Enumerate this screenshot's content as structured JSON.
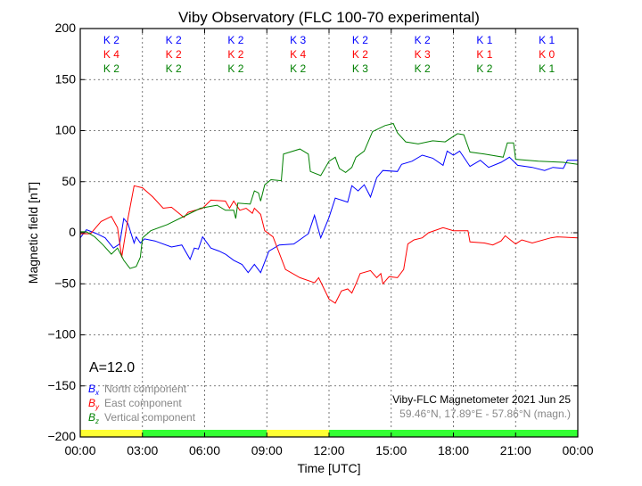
{
  "chart_data": {
    "type": "line",
    "title": "Viby Observatory (FLC 100-70 experimental)",
    "xlabel": "Time [UTC]",
    "ylabel": "Magnetic field [nT]",
    "xlim": [
      0,
      24
    ],
    "ylim": [
      -200,
      200
    ],
    "grid": true,
    "x_ticks": [
      0,
      3,
      6,
      9,
      12,
      15,
      18,
      21,
      24
    ],
    "x_tick_labels": [
      "00:00",
      "03:00",
      "06:00",
      "09:00",
      "12:00",
      "15:00",
      "18:00",
      "21:00",
      "00:00"
    ],
    "y_ticks": [
      200,
      150,
      100,
      50,
      0,
      -50,
      -100,
      -150,
      -200
    ],
    "y_tick_labels": [
      "200",
      "150",
      "100",
      "50",
      "0",
      "−50",
      "−100",
      "−150",
      "−200"
    ],
    "series": [
      {
        "name": "North component",
        "symbol": "B",
        "sub": "x",
        "color": "#0000ff",
        "points": [
          [
            0,
            -5
          ],
          [
            0.3,
            3
          ],
          [
            0.8,
            -1
          ],
          [
            1.2,
            -5
          ],
          [
            1.6,
            -15
          ],
          [
            1.9,
            -11
          ],
          [
            2.1,
            14
          ],
          [
            2.3,
            9
          ],
          [
            2.6,
            -10
          ],
          [
            2.7,
            -4
          ],
          [
            2.9,
            -10
          ],
          [
            3.1,
            -6
          ],
          [
            3.6,
            -8
          ],
          [
            4.4,
            -14
          ],
          [
            4.9,
            -12
          ],
          [
            5.3,
            -26
          ],
          [
            5.5,
            -15
          ],
          [
            5.7,
            -16
          ],
          [
            5.9,
            -4
          ],
          [
            6.3,
            -15
          ],
          [
            6.7,
            -18
          ],
          [
            7,
            -21
          ],
          [
            7.4,
            -27
          ],
          [
            7.8,
            -31
          ],
          [
            8.1,
            -39
          ],
          [
            8.4,
            -31
          ],
          [
            8.7,
            -39
          ],
          [
            9.1,
            -18
          ],
          [
            9.6,
            -12
          ],
          [
            10.3,
            -11
          ],
          [
            11,
            -1
          ],
          [
            11.3,
            17
          ],
          [
            11.6,
            -5
          ],
          [
            12,
            15
          ],
          [
            12.3,
            34
          ],
          [
            12.6,
            32
          ],
          [
            12.9,
            30
          ],
          [
            13.1,
            46
          ],
          [
            13.4,
            41
          ],
          [
            13.7,
            47
          ],
          [
            14,
            35
          ],
          [
            14.3,
            54
          ],
          [
            14.6,
            61
          ],
          [
            15.3,
            60
          ],
          [
            15.5,
            67
          ],
          [
            16,
            70
          ],
          [
            16.5,
            76
          ],
          [
            17,
            73
          ],
          [
            17.5,
            66
          ],
          [
            17.7,
            80
          ],
          [
            18,
            76
          ],
          [
            18.3,
            80
          ],
          [
            18.8,
            65
          ],
          [
            19.3,
            71
          ],
          [
            19.7,
            64
          ],
          [
            20.3,
            69
          ],
          [
            20.7,
            74
          ],
          [
            21.1,
            66
          ],
          [
            21.8,
            64
          ],
          [
            22.4,
            61
          ],
          [
            22.8,
            64
          ],
          [
            23.3,
            63
          ],
          [
            23.5,
            71
          ],
          [
            24,
            71
          ]
        ]
      },
      {
        "name": "East component",
        "symbol": "B",
        "sub": "y",
        "color": "#ff0000",
        "points": [
          [
            0,
            -1
          ],
          [
            0.5,
            -1
          ],
          [
            1,
            11
          ],
          [
            1.5,
            16
          ],
          [
            1.8,
            5
          ],
          [
            2,
            -24
          ],
          [
            2.3,
            14
          ],
          [
            2.6,
            46
          ],
          [
            3,
            44
          ],
          [
            3.5,
            35
          ],
          [
            4,
            24
          ],
          [
            4.4,
            25
          ],
          [
            5,
            15
          ],
          [
            5.2,
            20
          ],
          [
            5.9,
            24
          ],
          [
            6.3,
            32
          ],
          [
            7,
            31
          ],
          [
            7.2,
            24
          ],
          [
            7.4,
            31
          ],
          [
            7.7,
            22
          ],
          [
            8,
            24
          ],
          [
            8.3,
            19
          ],
          [
            8.4,
            24
          ],
          [
            8.7,
            18
          ],
          [
            8.9,
            2
          ],
          [
            9.3,
            -4
          ],
          [
            9.9,
            -36
          ],
          [
            10.6,
            -44
          ],
          [
            11.3,
            -49
          ],
          [
            11.5,
            -44
          ],
          [
            12,
            -65
          ],
          [
            12.3,
            -69
          ],
          [
            12.6,
            -57
          ],
          [
            12.9,
            -55
          ],
          [
            13.1,
            -59
          ],
          [
            13.3,
            -50
          ],
          [
            13.5,
            -40
          ],
          [
            14,
            -37
          ],
          [
            14.3,
            -44
          ],
          [
            14.5,
            -40
          ],
          [
            14.6,
            -50
          ],
          [
            14.9,
            -43
          ],
          [
            15.3,
            -44
          ],
          [
            15.6,
            -36
          ],
          [
            15.8,
            -11
          ],
          [
            16.1,
            -7
          ],
          [
            16.5,
            -5
          ],
          [
            16.8,
            0
          ],
          [
            17.5,
            5
          ],
          [
            18,
            2
          ],
          [
            18.7,
            2
          ],
          [
            18.8,
            -9
          ],
          [
            19.5,
            -10
          ],
          [
            19.9,
            -12
          ],
          [
            20.3,
            -8
          ],
          [
            20.5,
            -3
          ],
          [
            21,
            -11
          ],
          [
            21.3,
            -7
          ],
          [
            21.8,
            -10
          ],
          [
            22.7,
            -5
          ],
          [
            23,
            -4
          ],
          [
            24,
            -5
          ]
        ]
      },
      {
        "name": "Vertical component",
        "symbol": "B",
        "sub": "z",
        "color": "#008000",
        "points": [
          [
            0,
            1
          ],
          [
            0.3,
            1
          ],
          [
            0.7,
            -4
          ],
          [
            1.1,
            -12
          ],
          [
            1.5,
            -21
          ],
          [
            1.8,
            -15
          ],
          [
            2.1,
            -27
          ],
          [
            2.4,
            -35
          ],
          [
            2.7,
            -33
          ],
          [
            2.9,
            -24
          ],
          [
            3,
            -5
          ],
          [
            3.4,
            2
          ],
          [
            4.2,
            8
          ],
          [
            5.1,
            17
          ],
          [
            5.8,
            24
          ],
          [
            6.6,
            27
          ],
          [
            7,
            22
          ],
          [
            7.4,
            22
          ],
          [
            7.5,
            14
          ],
          [
            7.6,
            29
          ],
          [
            8.2,
            28
          ],
          [
            8.4,
            41
          ],
          [
            8.6,
            39
          ],
          [
            8.7,
            31
          ],
          [
            8.9,
            47
          ],
          [
            9.2,
            52
          ],
          [
            9.7,
            51
          ],
          [
            9.8,
            77
          ],
          [
            10.6,
            82
          ],
          [
            11,
            77
          ],
          [
            11.1,
            60
          ],
          [
            11.6,
            56
          ],
          [
            12,
            70
          ],
          [
            12.3,
            74
          ],
          [
            12.5,
            63
          ],
          [
            12.8,
            59
          ],
          [
            13.1,
            64
          ],
          [
            13.3,
            74
          ],
          [
            13.7,
            80
          ],
          [
            14.1,
            99
          ],
          [
            14.7,
            105
          ],
          [
            15.1,
            107
          ],
          [
            15.3,
            98
          ],
          [
            15.7,
            89
          ],
          [
            16.3,
            87
          ],
          [
            17,
            90
          ],
          [
            17.6,
            89
          ],
          [
            18.2,
            97
          ],
          [
            18.5,
            96
          ],
          [
            18.8,
            79
          ],
          [
            19.5,
            77
          ],
          [
            20.4,
            74
          ],
          [
            20.6,
            88
          ],
          [
            20.9,
            88
          ],
          [
            21,
            72
          ],
          [
            22.1,
            70
          ],
          [
            23.3,
            69
          ],
          [
            24,
            67
          ]
        ]
      }
    ],
    "k_indices": {
      "x": [
        "K 2",
        "K 2",
        "K 2",
        "K 3",
        "K 2",
        "K 2",
        "K 1",
        "K 1"
      ],
      "y": [
        "K 4",
        "K 2",
        "K 2",
        "K 4",
        "K 2",
        "K 3",
        "K 1",
        "K 0"
      ],
      "z": [
        "K 2",
        "K 2",
        "K 2",
        "K 2",
        "K 3",
        "K 2",
        "K 2",
        "K 1"
      ]
    },
    "status_bar": [
      {
        "from": 0,
        "to": 3,
        "color": "#ffff33"
      },
      {
        "from": 3,
        "to": 9,
        "color": "#33ff33"
      },
      {
        "from": 9,
        "to": 12,
        "color": "#ffff33"
      },
      {
        "from": 12,
        "to": 24,
        "color": "#33ff33"
      }
    ],
    "a_index": "A=12.0",
    "legend_placement": "bottom-left",
    "info_line1": "Viby-FLC Magnetometer 2021 Jun 25",
    "info_line2": "59.46°N, 17.89°E - 57.86°N (magn.)"
  }
}
